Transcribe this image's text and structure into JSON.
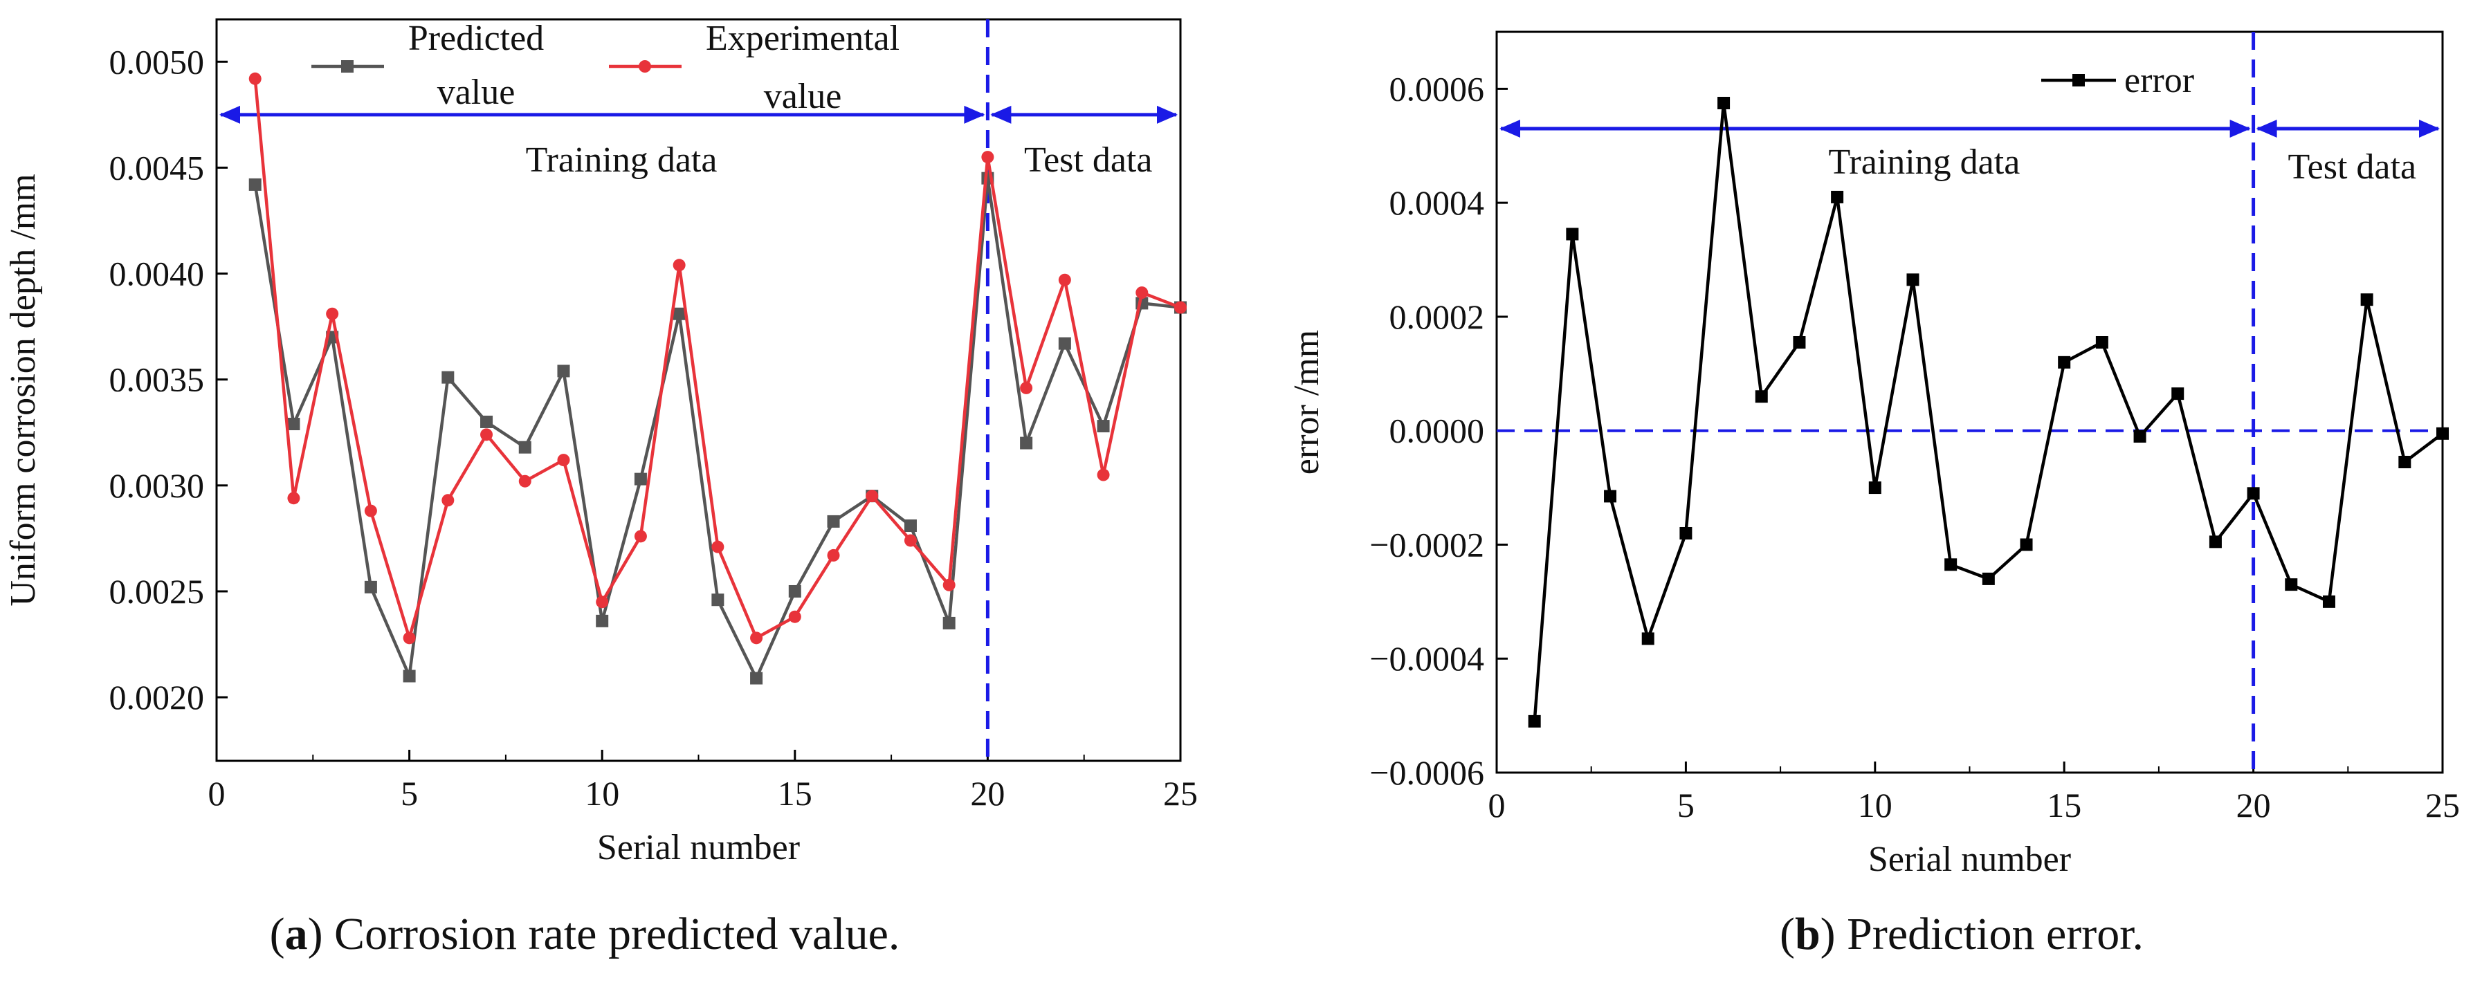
{
  "chart_data": [
    {
      "type": "line",
      "x": [
        1,
        2,
        3,
        4,
        5,
        6,
        7,
        8,
        9,
        10,
        11,
        12,
        13,
        14,
        15,
        16,
        17,
        18,
        19,
        20,
        21,
        22,
        23,
        24,
        25
      ],
      "series": [
        {
          "name": "Predicted value",
          "color": "#555555",
          "marker": "square",
          "values": [
            0.00442,
            0.00329,
            0.0037,
            0.00252,
            0.0021,
            0.00351,
            0.0033,
            0.00318,
            0.00354,
            0.00236,
            0.00303,
            0.00381,
            0.00246,
            0.00209,
            0.0025,
            0.00283,
            0.00295,
            0.00281,
            0.00235,
            0.00445,
            0.0032,
            0.00367,
            0.00328,
            0.00386,
            0.00384
          ]
        },
        {
          "name": "Experimental value",
          "color": "#e8333a",
          "marker": "circle",
          "values": [
            0.00492,
            0.00294,
            0.00381,
            0.00288,
            0.00228,
            0.00293,
            0.00324,
            0.00302,
            0.00312,
            0.00245,
            0.00276,
            0.00404,
            0.00271,
            0.00228,
            0.00238,
            0.00267,
            0.00295,
            0.00274,
            0.00253,
            0.00455,
            0.00346,
            0.00397,
            0.00305,
            0.00391,
            0.00384
          ]
        }
      ],
      "xlabel": "Serial number",
      "ylabel": "Uniform corrosion depth  /mm",
      "xlim": [
        0,
        25
      ],
      "ylim": [
        0.0017,
        0.0052
      ],
      "xticks": [
        0,
        5,
        10,
        15,
        20,
        25
      ],
      "xtick_labels": [
        "0",
        "5",
        "10",
        "15",
        "20",
        "25"
      ],
      "yticks": [
        0.002,
        0.0025,
        0.003,
        0.0035,
        0.004,
        0.0045,
        0.005
      ],
      "ytick_labels": [
        "0.0020",
        "0.0025",
        "0.0030",
        "0.0035",
        "0.0040",
        "0.0045",
        "0.0050"
      ],
      "divider_x": 20,
      "arrow_y": 0.00475,
      "training_label": "Training data",
      "test_label": "Test data",
      "legend_entries": [
        {
          "line1": "Predicted",
          "line2": "value"
        },
        {
          "line1": "Experimental",
          "line2": "value"
        }
      ],
      "legend_position": "top",
      "grid": false,
      "caption_letter": "a",
      "caption_text": " Corrosion rate predicted value."
    },
    {
      "type": "line",
      "x": [
        1,
        2,
        3,
        4,
        5,
        6,
        7,
        8,
        9,
        10,
        11,
        12,
        13,
        14,
        15,
        16,
        17,
        18,
        19,
        20,
        21,
        22,
        23,
        24,
        25
      ],
      "series": [
        {
          "name": "error",
          "color": "#000000",
          "marker": "square",
          "values": [
            -0.00051,
            0.000345,
            -0.000115,
            -0.000365,
            -0.00018,
            0.000575,
            6e-05,
            0.000155,
            0.00041,
            -0.0001,
            0.000265,
            -0.000235,
            -0.00026,
            -0.0002,
            0.00012,
            0.000155,
            -1e-05,
            6.5e-05,
            -0.000195,
            -0.00011,
            -0.00027,
            -0.0003,
            0.00023,
            -5.5e-05,
            -5e-06
          ]
        }
      ],
      "xlabel": "Serial number",
      "ylabel": "error  /mm",
      "xlim": [
        0,
        25
      ],
      "ylim": [
        -0.0006,
        0.0007
      ],
      "xticks": [
        0,
        5,
        10,
        15,
        20,
        25
      ],
      "xtick_labels": [
        "0",
        "5",
        "10",
        "15",
        "20",
        "25"
      ],
      "yticks": [
        -0.0006,
        -0.0004,
        -0.0002,
        0,
        0.0002,
        0.0004,
        0.0006
      ],
      "ytick_labels": [
        "−0.0006",
        "−0.0004",
        "−0.0002",
        "0.0000",
        "0.0002",
        "0.0004",
        "0.0006"
      ],
      "divider_x": 20,
      "zero_line": 0,
      "arrow_y": 0.00053,
      "training_label": "Training data",
      "test_label": "Test data",
      "legend_entries": [
        {
          "line1": "error",
          "line2": ""
        }
      ],
      "legend_position": "top-right",
      "grid": false,
      "caption_letter": "b",
      "caption_text": " Prediction error."
    }
  ],
  "colors": {
    "divider": "#1a1ae6",
    "arrow": "#1a1ae6",
    "axis": "#000000"
  }
}
